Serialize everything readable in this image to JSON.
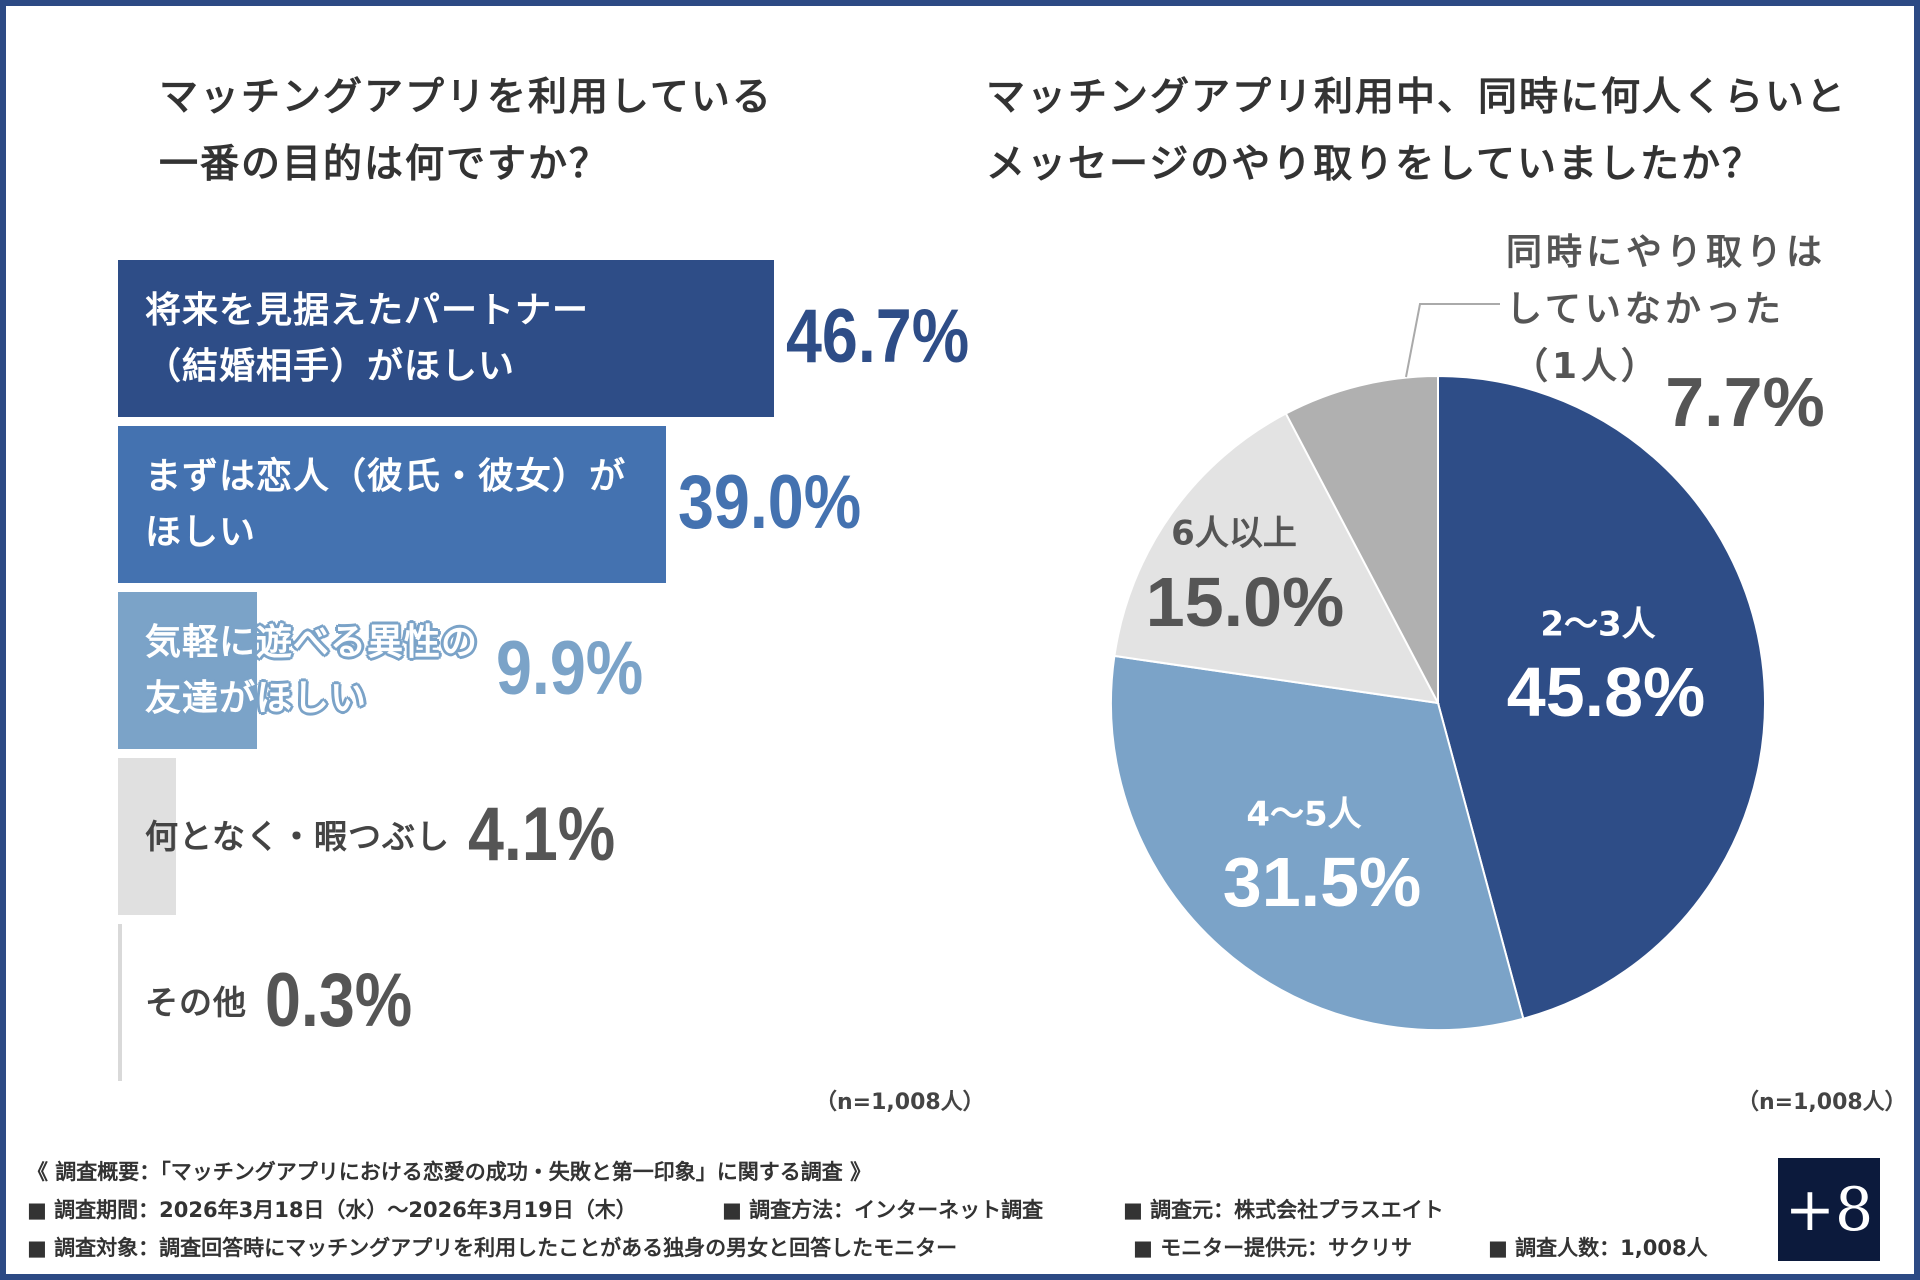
{
  "chart_data": [
    {
      "type": "bar",
      "orientation": "horizontal",
      "title": "マッチングアプリを利用している一番の目的は何ですか？",
      "title_lines": [
        "マッチングアプリを利用している",
        "一番の目的は何ですか？"
      ],
      "categories": [
        [
          "将来を見据えたパートナー",
          "（結婚相手）がほしい"
        ],
        [
          "まずは恋人（彼氏・彼女）が",
          "ほしい"
        ],
        [
          "気軽に遊べる異性の",
          "友達がほしい"
        ],
        [
          "何となく・暇つぶし"
        ],
        [
          "その他"
        ]
      ],
      "values": [
        46.7,
        39.0,
        9.9,
        4.1,
        0.3
      ],
      "value_labels": [
        "46.7%",
        "39.0%",
        "9.9%",
        "4.1%",
        "0.3%"
      ],
      "colors": [
        "#2e4d87",
        "#4472b0",
        "#7ba3c8",
        "#e0e0e0",
        "#d9d9d9"
      ],
      "value_colors": [
        "#2e4d87",
        "#4472b0",
        "#7ba3c8",
        "#555555",
        "#555555"
      ],
      "note": "（n=1,008人）"
    },
    {
      "type": "pie",
      "title": "マッチングアプリ利用中、同時に何人くらいとメッセージのやり取りをしていましたか？",
      "title_lines": [
        "マッチングアプリ利用中、同時に何人くらいと",
        "メッセージのやり取りをしていましたか？"
      ],
      "start": "top",
      "direction": "clockwise",
      "slices": [
        {
          "label": "2〜3人",
          "value": 45.8,
          "value_label": "45.8%",
          "color": "#2e4d87"
        },
        {
          "label": "4〜5人",
          "value": 31.5,
          "value_label": "31.5%",
          "color": "#7ba3c8"
        },
        {
          "label": "6人以上",
          "value": 15.0,
          "value_label": "15.0%",
          "color": "#e3e3e3"
        },
        {
          "label_lines": [
            "同時にやり取りは",
            "していなかった",
            "（1人）"
          ],
          "value": 7.7,
          "value_label": "7.7%",
          "color": "#b0b0b0"
        }
      ],
      "note": "（n=1,008人）"
    }
  ],
  "footer": {
    "heading": "《 調査概要：「マッチングアプリにおける恋愛の成功・失敗と第一印象」に関する調査 》",
    "items_row1": [
      "■ 調査期間：2026年3月18日（水）〜2026年3月19日（木）",
      "■ 調査方法：インターネット調査",
      "■ 調査元：株式会社プラスエイト"
    ],
    "items_row2": [
      "■ 調査対象：調査回答時にマッチングアプリを利用したことがある独身の男女と回答したモニター",
      "■ モニター提供元：サクリサ",
      "■ 調査人数：1,008人"
    ]
  },
  "logo": {
    "text": "+8",
    "color": "#0c1a3c"
  },
  "frame_color": "#2c4a84"
}
